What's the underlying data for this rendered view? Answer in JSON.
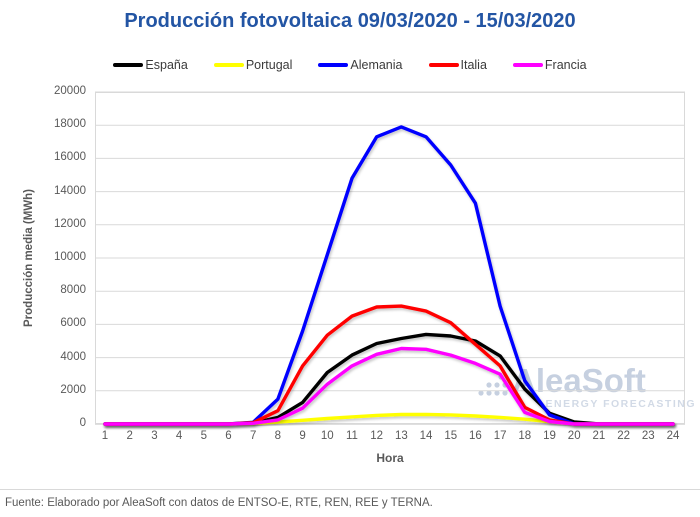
{
  "title": "Producción fotovoltaica 09/03/2020 - 15/03/2020",
  "footer": "Fuente: Elaborado por AleaSoft con datos de ENTSO-E, RTE, REN, REE y TERNA.",
  "watermark": {
    "name": "AleaSoft",
    "tagline": "ENERGY FORECASTING",
    "color": "#c6d0e0"
  },
  "colors": {
    "title": "#2355a4",
    "axis_text": "#595959",
    "gridline": "#d9d9d9",
    "axis_line": "#bfbfbf"
  },
  "chart_data": {
    "type": "line",
    "title": "Producción fotovoltaica 09/03/2020 - 15/03/2020",
    "xlabel": "Hora",
    "ylabel": "Producción media (MWh)",
    "x": [
      1,
      2,
      3,
      4,
      5,
      6,
      7,
      8,
      9,
      10,
      11,
      12,
      13,
      14,
      15,
      16,
      17,
      18,
      19,
      20,
      21,
      22,
      23,
      24
    ],
    "ylim": [
      0,
      20000
    ],
    "y_ticks": [
      0,
      2000,
      4000,
      6000,
      8000,
      10000,
      12000,
      14000,
      16000,
      18000,
      20000
    ],
    "grid": true,
    "legend_position": "top",
    "series": [
      {
        "name": "España",
        "color": "#000000",
        "values": [
          0,
          0,
          0,
          0,
          0,
          0,
          50,
          400,
          1300,
          3100,
          4150,
          4850,
          5150,
          5400,
          5300,
          5000,
          4100,
          2100,
          650,
          120,
          0,
          0,
          0,
          0
        ]
      },
      {
        "name": "Portugal",
        "color": "#ffff00",
        "values": [
          0,
          0,
          0,
          0,
          0,
          0,
          30,
          120,
          220,
          330,
          430,
          520,
          570,
          580,
          550,
          480,
          400,
          290,
          140,
          0,
          0,
          0,
          0,
          0
        ]
      },
      {
        "name": "Alemania",
        "color": "#0000ff",
        "values": [
          0,
          0,
          0,
          0,
          0,
          0,
          100,
          1500,
          5600,
          10200,
          14800,
          17300,
          17900,
          17300,
          15600,
          13300,
          7100,
          2600,
          550,
          0,
          0,
          0,
          0,
          0
        ]
      },
      {
        "name": "Italia",
        "color": "#ff0000",
        "values": [
          0,
          0,
          0,
          0,
          0,
          0,
          80,
          800,
          3500,
          5350,
          6500,
          7050,
          7100,
          6800,
          6100,
          4800,
          3500,
          1000,
          250,
          0,
          0,
          0,
          0,
          0
        ]
      },
      {
        "name": "Francia",
        "color": "#ff00ff",
        "values": [
          0,
          0,
          0,
          0,
          0,
          0,
          40,
          250,
          950,
          2400,
          3500,
          4200,
          4550,
          4500,
          4150,
          3650,
          3000,
          700,
          150,
          0,
          0,
          0,
          0,
          0
        ]
      }
    ]
  }
}
